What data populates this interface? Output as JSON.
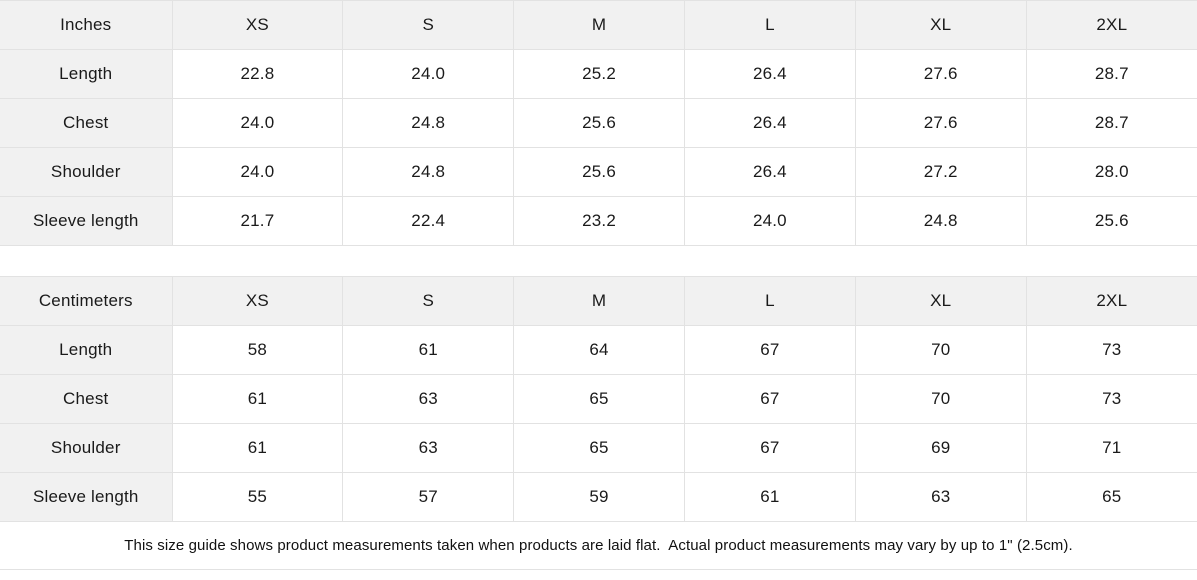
{
  "tables": [
    {
      "unit_label": "Inches",
      "sizes": [
        "XS",
        "S",
        "M",
        "L",
        "XL",
        "2XL"
      ],
      "rows": [
        {
          "label": "Length",
          "values": [
            "22.8",
            "24.0",
            "25.2",
            "26.4",
            "27.6",
            "28.7"
          ]
        },
        {
          "label": "Chest",
          "values": [
            "24.0",
            "24.8",
            "25.6",
            "26.4",
            "27.6",
            "28.7"
          ]
        },
        {
          "label": "Shoulder",
          "values": [
            "24.0",
            "24.8",
            "25.6",
            "26.4",
            "27.2",
            "28.0"
          ]
        },
        {
          "label": "Sleeve length",
          "values": [
            "21.7",
            "22.4",
            "23.2",
            "24.0",
            "24.8",
            "25.6"
          ]
        }
      ]
    },
    {
      "unit_label": "Centimeters",
      "sizes": [
        "XS",
        "S",
        "M",
        "L",
        "XL",
        "2XL"
      ],
      "rows": [
        {
          "label": "Length",
          "values": [
            "58",
            "61",
            "64",
            "67",
            "70",
            "73"
          ]
        },
        {
          "label": "Chest",
          "values": [
            "61",
            "63",
            "65",
            "67",
            "70",
            "73"
          ]
        },
        {
          "label": "Shoulder",
          "values": [
            "61",
            "63",
            "65",
            "67",
            "69",
            "71"
          ]
        },
        {
          "label": "Sleeve length",
          "values": [
            "55",
            "57",
            "59",
            "61",
            "63",
            "65"
          ]
        }
      ]
    }
  ],
  "footer": {
    "note": "This size guide shows product measurements taken when products are laid flat.  Actual product measurements may vary by up to 1\" (2.5cm)."
  },
  "colors": {
    "header_background": "#f1f1f1",
    "border": "#e2e2e2",
    "text": "#1a1a1a"
  }
}
